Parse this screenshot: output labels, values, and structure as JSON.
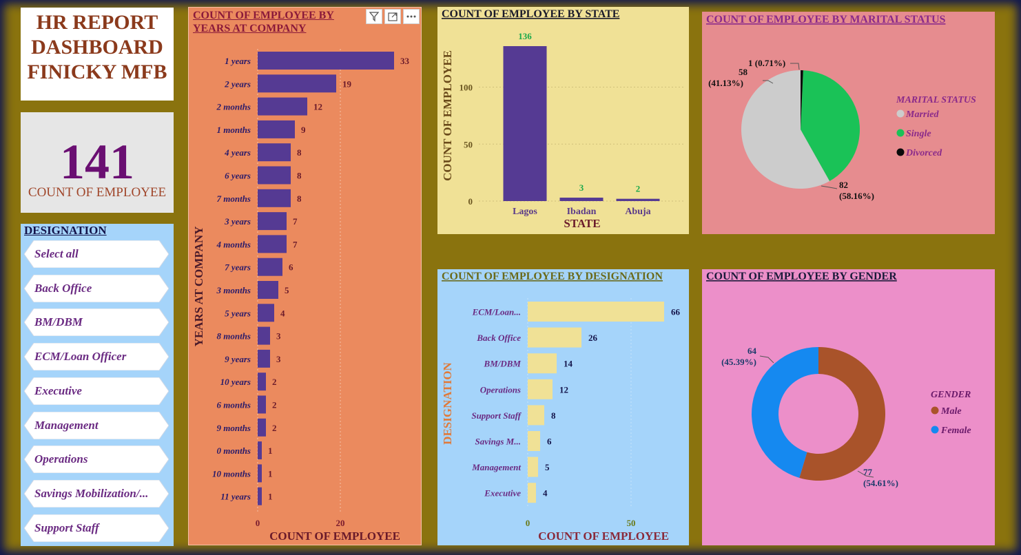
{
  "header": {
    "line1": "HR REPORT",
    "line2": "DASHBOARD",
    "line3": "FINICKY MFB"
  },
  "kpi": {
    "value": "141",
    "label": "COUNT OF EMPLOYEE"
  },
  "slicer": {
    "title": "DESIGNATION",
    "items": [
      {
        "label": "Select all"
      },
      {
        "label": "Back Office"
      },
      {
        "label": "BM/DBM"
      },
      {
        "label": "ECM/Loan Officer"
      },
      {
        "label": "Executive"
      },
      {
        "label": "Management"
      },
      {
        "label": "Operations"
      },
      {
        "label": "Savings Mobilization/..."
      },
      {
        "label": "Support Staff"
      }
    ]
  },
  "years_chart": {
    "title": "COUNT OF EMPLOYEE BY YEARS AT COMPANY",
    "visual_icons": [
      "filter-icon",
      "focus-mode-icon",
      "more-options-icon"
    ]
  },
  "chart_data": [
    {
      "id": "years",
      "type": "bar",
      "orientation": "horizontal",
      "title": "COUNT OF EMPLOYEE BY YEARS AT COMPANY",
      "xlabel": "COUNT OF EMPLOYEE",
      "ylabel": "YEARS AT COMPANY",
      "categories": [
        "1 years",
        "2 years",
        "2 months",
        "1 months",
        "4 years",
        "6 years",
        "7 months",
        "3 years",
        "4 months",
        "7 years",
        "3 months",
        "5 years",
        "8 months",
        "9 years",
        "10 years",
        "6 months",
        "9 months",
        "0 months",
        "10 months",
        "11 years"
      ],
      "values": [
        33,
        19,
        12,
        9,
        8,
        8,
        8,
        7,
        7,
        6,
        5,
        4,
        3,
        3,
        2,
        2,
        2,
        1,
        1,
        1
      ],
      "x_ticks": [
        0,
        20
      ],
      "xlim": [
        0,
        38
      ],
      "bar_color": "#553a93"
    },
    {
      "id": "state",
      "type": "bar",
      "title": "COUNT OF EMPLOYEE BY STATE",
      "xlabel": "STATE",
      "ylabel": "COUNT OF EMPLOYEE",
      "categories": [
        "Lagos",
        "Ibadan",
        "Abuja"
      ],
      "values": [
        136,
        3,
        2
      ],
      "y_ticks": [
        0,
        50,
        100
      ],
      "ylim": [
        0,
        136
      ],
      "bar_color": "#553a93",
      "label_color": "#1aa84a"
    },
    {
      "id": "marital",
      "type": "pie",
      "title": "COUNT OF EMPLOYEE BY MARITAL STATUS",
      "legend_title": "MARITAL STATUS",
      "slices": [
        {
          "label": "Married",
          "value": 82,
          "pct": "(58.16%)",
          "color": "#cccccc"
        },
        {
          "label": "Single",
          "value": 58,
          "pct": "(41.13%)",
          "color": "#1ac257"
        },
        {
          "label": "Divorced",
          "value": 1,
          "pct": "(0.71%)",
          "color": "#0a0a0a"
        }
      ]
    },
    {
      "id": "designation",
      "type": "bar",
      "orientation": "horizontal",
      "title": "COUNT OF EMPLOYEE BY DESIGNATION",
      "xlabel": "COUNT OF EMPLOYEE",
      "ylabel": "DESIGNATION",
      "categories": [
        "ECM/Loan...",
        "Back Office",
        "BM/DBM",
        "Operations",
        "Support Staff",
        "Savings M...",
        "Management",
        "Executive"
      ],
      "values": [
        66,
        26,
        14,
        12,
        8,
        6,
        5,
        4
      ],
      "x_ticks": [
        0,
        50
      ],
      "xlim": [
        0,
        75
      ],
      "bar_color": "#f0e196"
    },
    {
      "id": "gender",
      "type": "pie",
      "title": "COUNT OF EMPLOYEE BY GENDER",
      "legend_title": "GENDER",
      "slices": [
        {
          "label": "Male",
          "value": 77,
          "pct": "(54.61%)",
          "color": "#a9532a"
        },
        {
          "label": "Female",
          "value": 64,
          "pct": "(45.39%)",
          "color": "#1589f0"
        }
      ]
    }
  ]
}
